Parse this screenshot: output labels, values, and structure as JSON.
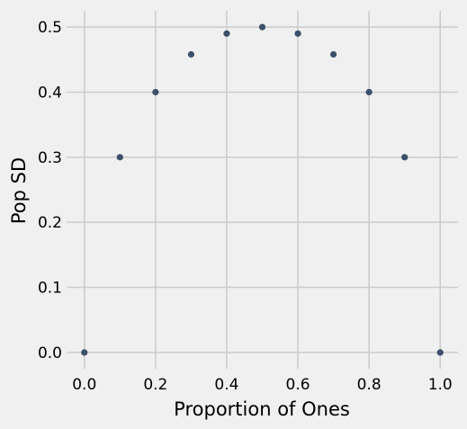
{
  "chart_data": {
    "type": "scatter",
    "title": "",
    "xlabel": "Proportion of Ones",
    "ylabel": "Pop SD",
    "x": [
      0.0,
      0.1,
      0.2,
      0.3,
      0.4,
      0.5,
      0.6,
      0.7,
      0.8,
      0.9,
      1.0
    ],
    "y": [
      0.0,
      0.3,
      0.4,
      0.458,
      0.49,
      0.5,
      0.49,
      0.458,
      0.4,
      0.3,
      0.0
    ],
    "xlim": [
      -0.05,
      1.05
    ],
    "ylim": [
      -0.025,
      0.525
    ],
    "xticks": [
      0.0,
      0.2,
      0.4,
      0.6,
      0.8,
      1.0
    ],
    "xtick_labels": [
      "0.0",
      "0.2",
      "0.4",
      "0.6",
      "0.8",
      "1.0"
    ],
    "yticks": [
      0.0,
      0.1,
      0.2,
      0.3,
      0.4,
      0.5
    ],
    "ytick_labels": [
      "0.0",
      "0.1",
      "0.2",
      "0.3",
      "0.4",
      "0.5"
    ],
    "grid": true,
    "colors": {
      "background": "#f0f0f0",
      "grid": "#cbcbcb",
      "marker": "#3c506b"
    }
  }
}
